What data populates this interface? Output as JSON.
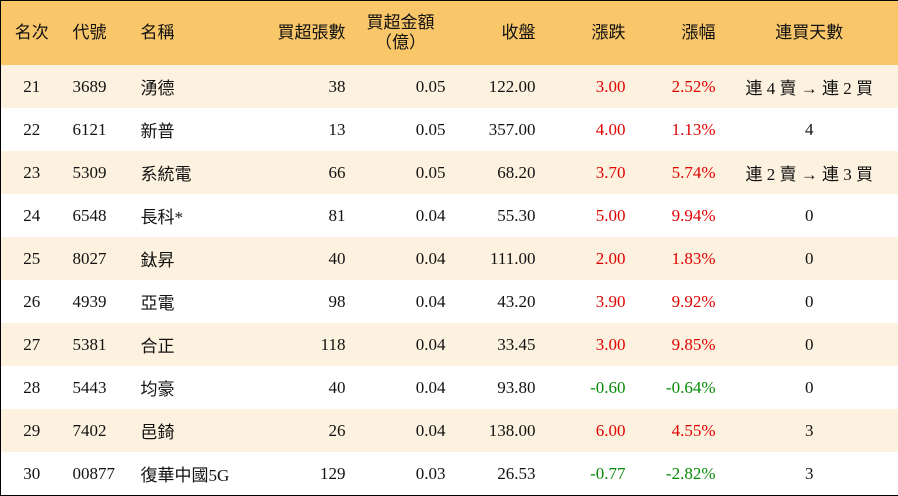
{
  "table": {
    "header": [
      "名次",
      "代號",
      "名稱",
      "買超張數",
      "買超金額\n（億）",
      "收盤",
      "漲跌",
      "漲幅",
      "連買天數"
    ],
    "rows": [
      [
        "21",
        "3689",
        "湧德",
        "38",
        "0.05",
        "122.00",
        "3.00",
        "2.52%",
        "連 4 賣 → 連 2 買"
      ],
      [
        "22",
        "6121",
        "新普",
        "13",
        "0.05",
        "357.00",
        "4.00",
        "1.13%",
        "4"
      ],
      [
        "23",
        "5309",
        "系統電",
        "66",
        "0.05",
        "68.20",
        "3.70",
        "5.74%",
        "連 2 賣 → 連 3 買"
      ],
      [
        "24",
        "6548",
        "長科*",
        "81",
        "0.04",
        "55.30",
        "5.00",
        "9.94%",
        "0"
      ],
      [
        "25",
        "8027",
        "鈦昇",
        "40",
        "0.04",
        "111.00",
        "2.00",
        "1.83%",
        "0"
      ],
      [
        "26",
        "4939",
        "亞電",
        "98",
        "0.04",
        "43.20",
        "3.90",
        "9.92%",
        "0"
      ],
      [
        "27",
        "5381",
        "合正",
        "118",
        "0.04",
        "33.45",
        "3.00",
        "9.85%",
        "0"
      ],
      [
        "28",
        "5443",
        "均豪",
        "40",
        "0.04",
        "93.80",
        "-0.60",
        "-0.64%",
        "0"
      ],
      [
        "29",
        "7402",
        "邑錡",
        "26",
        "0.04",
        "138.00",
        "6.00",
        "4.55%",
        "3"
      ],
      [
        "30",
        "00877",
        "復華中國5G",
        "129",
        "0.03",
        "26.53",
        "-0.77",
        "-2.82%",
        "3"
      ]
    ]
  }
}
